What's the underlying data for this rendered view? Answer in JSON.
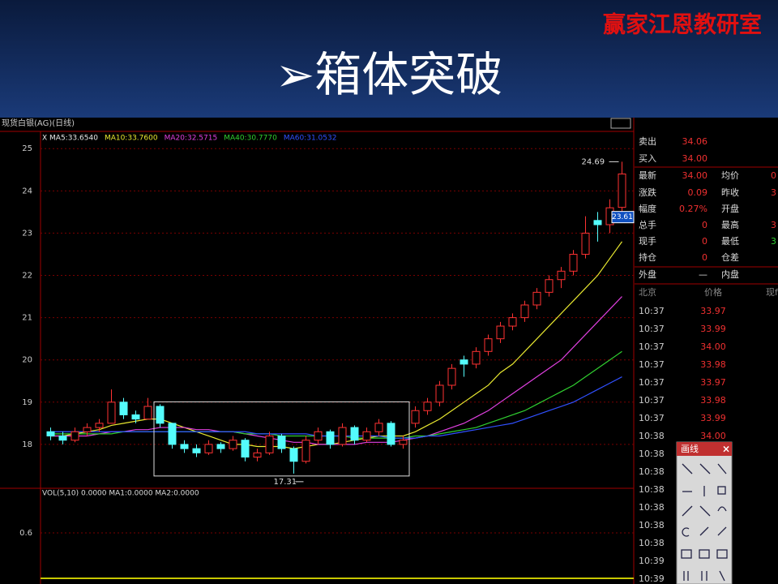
{
  "header": {
    "title": "➢箱体突破",
    "watermark": "赢家江恩教研室"
  },
  "chart_data": {
    "type": "candlestick",
    "title": "现货白银(AG)(日线)",
    "legend": [
      {
        "name": "X MA5:33.6540",
        "color": "#e8e8e8"
      },
      {
        "name": "MA10:33.7600",
        "color": "#e8e830"
      },
      {
        "name": "MA20:32.5715",
        "color": "#e040e0"
      },
      {
        "name": "MA40:30.7770",
        "color": "#30d030"
      },
      {
        "name": "MA60:31.0532",
        "color": "#3050ff"
      }
    ],
    "ylim": [
      17.0,
      25.35
    ],
    "yticks": [
      18,
      19,
      20,
      21,
      22,
      23,
      24,
      25
    ],
    "grid": true,
    "up_color": "#ff3232",
    "down_color": "#54fcfc",
    "candles": [
      [
        18.3,
        18.4,
        18.1,
        18.2
      ],
      [
        18.2,
        18.3,
        18.0,
        18.1
      ],
      [
        18.1,
        18.4,
        18.05,
        18.3
      ],
      [
        18.3,
        18.5,
        18.2,
        18.4
      ],
      [
        18.4,
        18.6,
        18.3,
        18.5
      ],
      [
        18.5,
        19.3,
        18.5,
        19.0
      ],
      [
        19.0,
        19.1,
        18.6,
        18.7
      ],
      [
        18.7,
        18.8,
        18.5,
        18.6
      ],
      [
        18.6,
        19.1,
        18.6,
        18.9
      ],
      [
        18.9,
        18.95,
        18.4,
        18.5
      ],
      [
        18.5,
        18.5,
        17.9,
        18.0
      ],
      [
        18.0,
        18.1,
        17.8,
        17.9
      ],
      [
        17.9,
        18.0,
        17.7,
        17.8
      ],
      [
        17.8,
        18.1,
        17.75,
        18.0
      ],
      [
        18.0,
        18.05,
        17.8,
        17.9
      ],
      [
        17.9,
        18.2,
        17.85,
        18.1
      ],
      [
        18.1,
        18.15,
        17.6,
        17.7
      ],
      [
        17.7,
        17.9,
        17.6,
        17.8
      ],
      [
        17.8,
        18.3,
        17.75,
        18.2
      ],
      [
        18.2,
        18.25,
        17.8,
        17.9
      ],
      [
        17.9,
        17.95,
        17.31,
        17.6
      ],
      [
        17.6,
        18.2,
        17.55,
        18.1
      ],
      [
        18.1,
        18.4,
        18.0,
        18.3
      ],
      [
        18.3,
        18.35,
        17.9,
        18.0
      ],
      [
        18.0,
        18.5,
        17.95,
        18.4
      ],
      [
        18.4,
        18.45,
        18.0,
        18.1
      ],
      [
        18.1,
        18.4,
        18.05,
        18.3
      ],
      [
        18.3,
        18.6,
        18.2,
        18.5
      ],
      [
        18.5,
        18.55,
        17.95,
        18.0
      ],
      [
        18.0,
        18.2,
        17.9,
        18.1
      ],
      [
        18.5,
        18.9,
        18.4,
        18.8
      ],
      [
        18.8,
        19.1,
        18.7,
        19.0
      ],
      [
        19.0,
        19.5,
        18.9,
        19.4
      ],
      [
        19.4,
        19.9,
        19.3,
        19.8
      ],
      [
        20.0,
        20.1,
        19.6,
        19.9
      ],
      [
        19.9,
        20.3,
        19.8,
        20.2
      ],
      [
        20.2,
        20.6,
        20.1,
        20.5
      ],
      [
        20.5,
        20.9,
        20.4,
        20.8
      ],
      [
        20.8,
        21.1,
        20.7,
        21.0
      ],
      [
        21.0,
        21.4,
        20.9,
        21.3
      ],
      [
        21.3,
        21.7,
        21.2,
        21.6
      ],
      [
        21.6,
        22.0,
        21.5,
        21.9
      ],
      [
        21.9,
        22.2,
        21.7,
        22.1
      ],
      [
        22.1,
        22.6,
        22.0,
        22.5
      ],
      [
        22.5,
        23.4,
        22.4,
        23.0
      ],
      [
        23.3,
        23.5,
        22.8,
        23.2
      ],
      [
        23.2,
        23.8,
        23.0,
        23.6
      ],
      [
        23.61,
        24.69,
        23.5,
        24.4
      ]
    ],
    "series": [
      {
        "color": "#e8e830",
        "values": [
          18.2,
          18.2,
          18.25,
          18.3,
          18.35,
          18.45,
          18.5,
          18.55,
          18.6,
          18.6,
          18.5,
          18.4,
          18.3,
          18.2,
          18.1,
          18.0,
          18.0,
          17.95,
          17.95,
          17.95,
          17.9,
          17.95,
          18.0,
          18.0,
          18.05,
          18.1,
          18.15,
          18.2,
          18.2,
          18.2,
          18.3,
          18.45,
          18.6,
          18.8,
          19.0,
          19.2,
          19.4,
          19.7,
          19.9,
          20.2,
          20.5,
          20.8,
          21.1,
          21.4,
          21.7,
          22.0,
          22.4,
          22.8
        ]
      },
      {
        "color": "#e040e0",
        "values": [
          18.2,
          18.2,
          18.2,
          18.2,
          18.25,
          18.3,
          18.3,
          18.35,
          18.35,
          18.4,
          18.4,
          18.4,
          18.35,
          18.35,
          18.3,
          18.3,
          18.25,
          18.2,
          18.15,
          18.1,
          18.05,
          18.05,
          18.0,
          18.0,
          18.0,
          18.0,
          18.05,
          18.05,
          18.05,
          18.1,
          18.15,
          18.2,
          18.3,
          18.4,
          18.5,
          18.65,
          18.8,
          19.0,
          19.2,
          19.4,
          19.6,
          19.8,
          20.0,
          20.3,
          20.6,
          20.9,
          21.2,
          21.5
        ]
      },
      {
        "color": "#30d030",
        "values": [
          18.25,
          18.25,
          18.25,
          18.25,
          18.25,
          18.25,
          18.3,
          18.3,
          18.3,
          18.3,
          18.3,
          18.3,
          18.3,
          18.3,
          18.3,
          18.3,
          18.25,
          18.25,
          18.25,
          18.2,
          18.2,
          18.2,
          18.2,
          18.2,
          18.2,
          18.15,
          18.15,
          18.15,
          18.15,
          18.15,
          18.2,
          18.2,
          18.25,
          18.3,
          18.35,
          18.4,
          18.5,
          18.6,
          18.7,
          18.8,
          18.95,
          19.1,
          19.25,
          19.4,
          19.6,
          19.8,
          20.0,
          20.2
        ]
      },
      {
        "color": "#3050ff",
        "values": [
          18.3,
          18.3,
          18.3,
          18.3,
          18.3,
          18.3,
          18.3,
          18.3,
          18.3,
          18.3,
          18.3,
          18.3,
          18.3,
          18.3,
          18.3,
          18.3,
          18.3,
          18.25,
          18.25,
          18.25,
          18.25,
          18.25,
          18.2,
          18.2,
          18.2,
          18.2,
          18.2,
          18.2,
          18.15,
          18.15,
          18.15,
          18.2,
          18.2,
          18.25,
          18.3,
          18.35,
          18.4,
          18.45,
          18.5,
          18.6,
          18.7,
          18.8,
          18.9,
          19.0,
          19.15,
          19.3,
          19.45,
          19.6
        ]
      }
    ]
  },
  "volume_panel": {
    "legend": "VOL(5,10) 0.0000 MA1:0.0000 MA2:0.0000",
    "tick": "0.6"
  },
  "quote": {
    "rows": [
      [
        "卖出",
        "34.06"
      ],
      [
        "买入",
        "34.00"
      ],
      [
        "最新",
        "34.00",
        "均价",
        "0"
      ],
      [
        "涨跌",
        "0.09",
        "昨收",
        "3"
      ],
      [
        "幅度",
        "0.27%",
        "开盘",
        ""
      ],
      [
        "总手",
        "0",
        "最高",
        "3"
      ],
      [
        "现手",
        "0",
        "最低",
        "3"
      ],
      [
        "持仓",
        "0",
        "仓差",
        ""
      ],
      [
        "外盘",
        "—",
        "内盘",
        ""
      ]
    ]
  },
  "ticks_table": {
    "header": [
      "北京",
      "价格",
      "现f"
    ],
    "rows": [
      [
        "10:37",
        "33.97"
      ],
      [
        "10:37",
        "33.99"
      ],
      [
        "10:37",
        "34.00"
      ],
      [
        "10:37",
        "33.98"
      ],
      [
        "10:37",
        "33.97"
      ],
      [
        "10:37",
        "33.98"
      ],
      [
        "10:37",
        "33.99"
      ],
      [
        "10:38",
        "34.00"
      ],
      [
        "10:38",
        ""
      ],
      [
        "10:38",
        ""
      ],
      [
        "10:38",
        ""
      ],
      [
        "10:38",
        ""
      ],
      [
        "10:38",
        ""
      ],
      [
        "10:38",
        ""
      ],
      [
        "10:39",
        ""
      ],
      [
        "10:39",
        ""
      ]
    ]
  },
  "draw_tool": {
    "title": "画线",
    "close": "×"
  }
}
